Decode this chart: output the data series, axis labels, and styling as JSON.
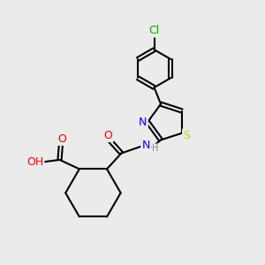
{
  "background_color": "#ebebeb",
  "bond_color": "#000000",
  "atom_colors": {
    "N": "#0000ff",
    "O": "#ff0000",
    "S": "#cccc00",
    "Cl": "#00aa00",
    "C": "#000000",
    "H": "#808080"
  },
  "figsize": [
    3.0,
    3.0
  ],
  "dpi": 100
}
